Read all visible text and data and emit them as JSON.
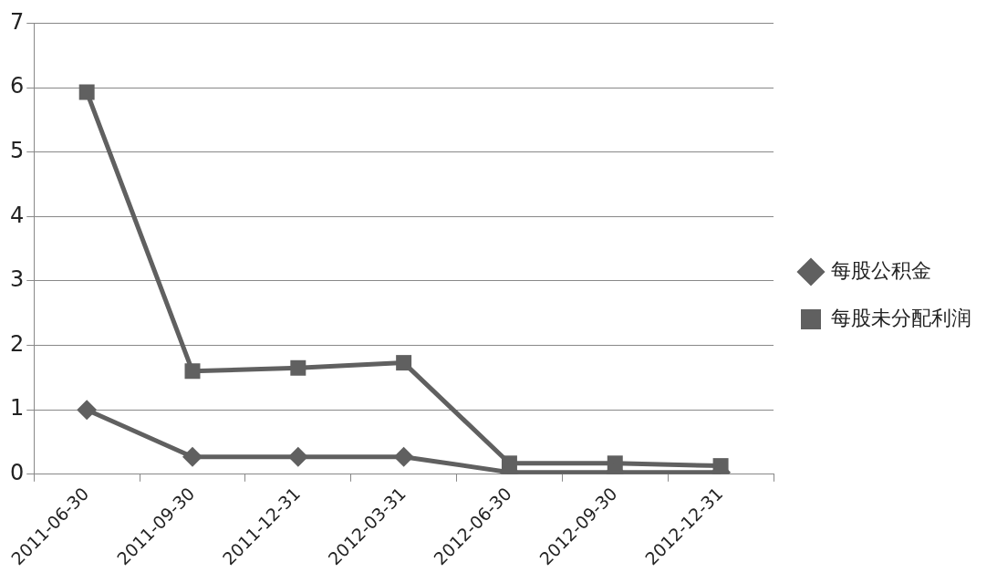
{
  "chart_data": {
    "type": "line",
    "categories": [
      "2011-06-30",
      "2011-09-30",
      "2011-12-31",
      "2012-03-31",
      "2012-06-30",
      "2012-09-30",
      "2012-12-31"
    ],
    "series": [
      {
        "name": "每股未分配利润",
        "color": "#606060",
        "marker": "square",
        "values": [
          5.93,
          1.6,
          1.65,
          1.73,
          0.17,
          0.17,
          0.13
        ]
      },
      {
        "name": "每股公积金",
        "color": "#606060",
        "marker": "diamond",
        "values": [
          1.0,
          0.27,
          0.27,
          0.27,
          0.03,
          0.03,
          0.03
        ]
      }
    ],
    "ylim": [
      0,
      7
    ],
    "yticks": [
      0,
      1,
      2,
      3,
      4,
      5,
      6,
      7
    ],
    "grid": "y",
    "legend": "right",
    "line_style": "solid"
  }
}
